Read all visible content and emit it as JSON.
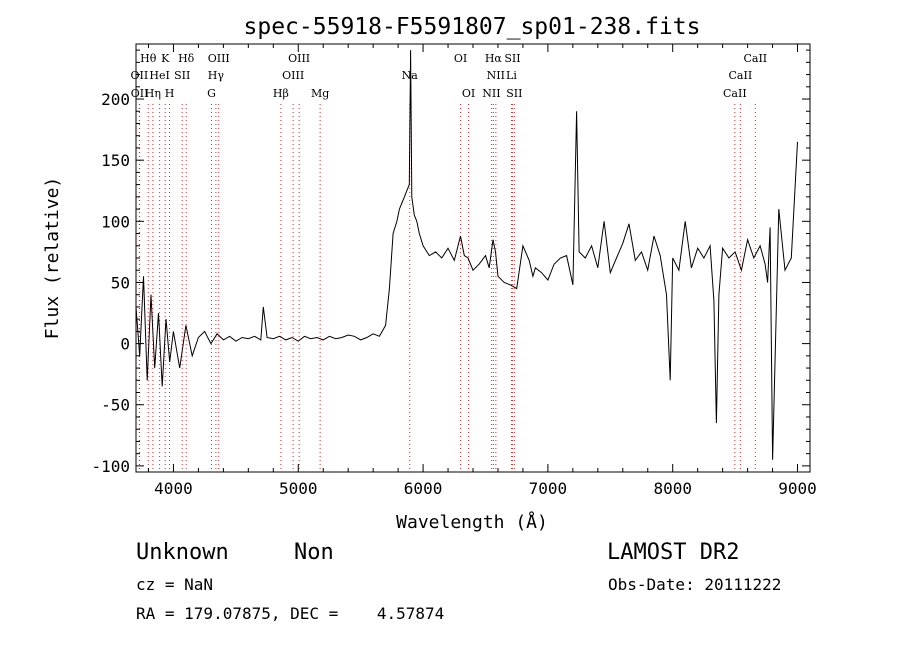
{
  "chart_data": {
    "type": "line",
    "title": "spec-55918-F5591807_sp01-238.fits",
    "xlabel": "Wavelength (Å)",
    "ylabel": "Flux (relative)",
    "xlim": [
      3700,
      9100
    ],
    "ylim": [
      -105,
      245
    ],
    "xticks": [
      4000,
      5000,
      6000,
      7000,
      8000,
      9000
    ],
    "yticks": [
      -100,
      -50,
      0,
      50,
      100,
      150,
      200
    ],
    "grid": false,
    "series": [
      {
        "x": [
          3700,
          3730,
          3760,
          3790,
          3820,
          3850,
          3880,
          3910,
          3940,
          3970,
          4000,
          4050,
          4100,
          4150,
          4200,
          4250,
          4300,
          4350,
          4400,
          4450,
          4500,
          4550,
          4600,
          4650,
          4700,
          4720,
          4750,
          4800,
          4850,
          4900,
          4950,
          5000,
          5050,
          5100,
          5150,
          5200,
          5250,
          5300,
          5350,
          5400,
          5450,
          5500,
          5550,
          5600,
          5650,
          5700,
          5730,
          5760,
          5790,
          5810,
          5830,
          5850,
          5870,
          5890,
          5900,
          5910,
          5930,
          5950,
          5970,
          6000,
          6050,
          6100,
          6150,
          6200,
          6250,
          6300,
          6330,
          6360,
          6400,
          6450,
          6500,
          6530,
          6560,
          6580,
          6600,
          6650,
          6700,
          6750,
          6800,
          6850,
          6880,
          6900,
          6950,
          7000,
          7050,
          7100,
          7150,
          7200,
          7230,
          7250,
          7300,
          7350,
          7400,
          7450,
          7500,
          7550,
          7600,
          7650,
          7700,
          7750,
          7800,
          7850,
          7900,
          7950,
          7980,
          8000,
          8050,
          8100,
          8150,
          8200,
          8250,
          8300,
          8330,
          8350,
          8370,
          8400,
          8450,
          8500,
          8550,
          8600,
          8650,
          8700,
          8740,
          8760,
          8780,
          8800,
          8850,
          8900,
          8950,
          9000
        ],
        "y": [
          30,
          -10,
          55,
          -30,
          40,
          -20,
          25,
          -35,
          20,
          -15,
          10,
          -20,
          15,
          -10,
          5,
          10,
          0,
          8,
          3,
          6,
          2,
          5,
          4,
          6,
          3,
          30,
          5,
          4,
          6,
          3,
          5,
          2,
          6,
          4,
          5,
          3,
          6,
          4,
          5,
          7,
          6,
          3,
          5,
          8,
          6,
          15,
          45,
          90,
          100,
          110,
          115,
          120,
          125,
          130,
          240,
          120,
          105,
          100,
          90,
          80,
          72,
          75,
          70,
          78,
          68,
          88,
          72,
          70,
          60,
          65,
          72,
          62,
          85,
          75,
          55,
          50,
          48,
          45,
          80,
          68,
          55,
          62,
          58,
          52,
          65,
          70,
          72,
          48,
          190,
          75,
          70,
          80,
          62,
          100,
          58,
          70,
          82,
          98,
          68,
          75,
          60,
          88,
          72,
          40,
          -30,
          70,
          60,
          100,
          62,
          78,
          70,
          80,
          35,
          -65,
          40,
          78,
          70,
          75,
          60,
          85,
          70,
          80,
          65,
          50,
          95,
          -95,
          110,
          60,
          70,
          165
        ]
      }
    ],
    "line_ids": [
      {
        "name": "Hθ",
        "x": 3798,
        "row": 0
      },
      {
        "name": "OII",
        "x": 3727,
        "row": 1
      },
      {
        "name": "OII",
        "x": 3729,
        "row": 2
      },
      {
        "name": "K",
        "x": 3934,
        "row": 0
      },
      {
        "name": "HeI",
        "x": 3889,
        "row": 1
      },
      {
        "name": "Hη",
        "x": 3835,
        "row": 2
      },
      {
        "name": "Hδ",
        "x": 4102,
        "row": 0
      },
      {
        "name": "SII",
        "x": 4070,
        "row": 1
      },
      {
        "name": "H",
        "x": 3969,
        "row": 2
      },
      {
        "name": "OIII",
        "x": 4363,
        "row": 0
      },
      {
        "name": "Hγ",
        "x": 4340,
        "row": 1
      },
      {
        "name": "G",
        "x": 4305,
        "row": 2
      },
      {
        "name": "OIII",
        "x": 5007,
        "row": 0
      },
      {
        "name": "OIII",
        "x": 4959,
        "row": 1
      },
      {
        "name": "Hβ",
        "x": 4861,
        "row": 2
      },
      {
        "name": "Mg",
        "x": 5175,
        "row": 2
      },
      {
        "name": "Na",
        "x": 5893,
        "row": 1
      },
      {
        "name": "OI",
        "x": 6300,
        "row": 0
      },
      {
        "name": "OI",
        "x": 6364,
        "row": 2
      },
      {
        "name": "Hα",
        "x": 6563,
        "row": 0
      },
      {
        "name": "SII",
        "x": 6716,
        "row": 0
      },
      {
        "name": "NII",
        "x": 6583,
        "row": 1
      },
      {
        "name": "Li",
        "x": 6708,
        "row": 1
      },
      {
        "name": "NII",
        "x": 6548,
        "row": 2
      },
      {
        "name": "SII",
        "x": 6731,
        "row": 2
      },
      {
        "name": "CaII",
        "x": 8662,
        "row": 0
      },
      {
        "name": "CaII",
        "x": 8542,
        "row": 1
      },
      {
        "name": "CaII",
        "x": 8498,
        "row": 2
      }
    ]
  },
  "footer": {
    "classification": "Unknown",
    "subclass": "Non",
    "survey": "LAMOST DR2",
    "redshift": "cz = NaN",
    "obs_date": "Obs-Date: 20111222",
    "coords": "RA = 179.07875, DEC =    4.57874"
  }
}
